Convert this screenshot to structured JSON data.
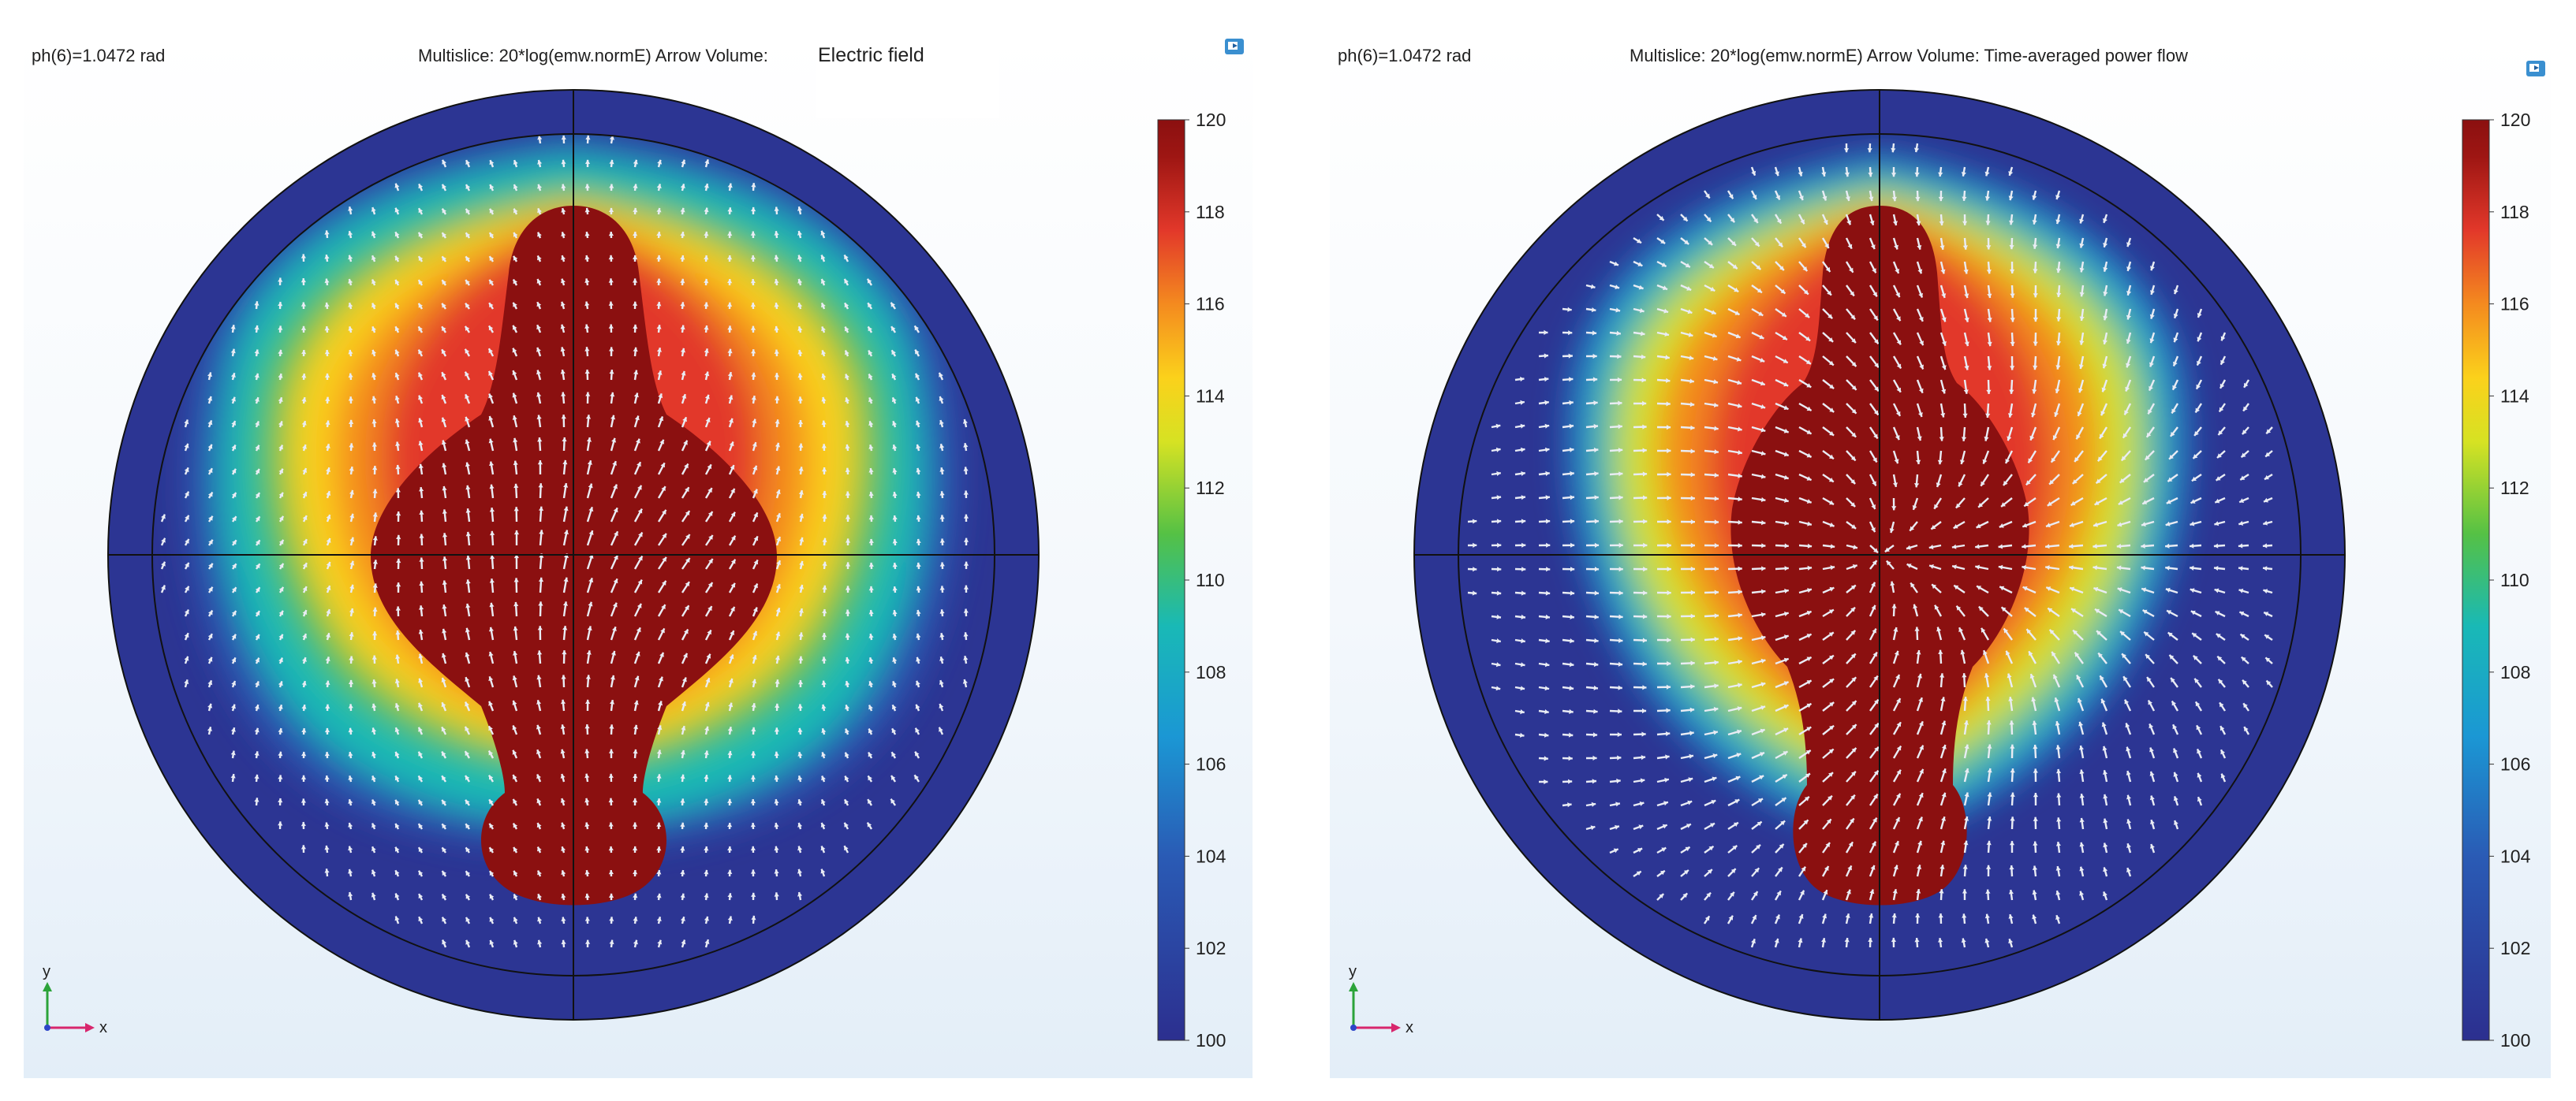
{
  "panels": [
    {
      "phase_label": "ph(6)=1.0472 rad",
      "title_prefix": "Multislice: 20*log(emw.normE)   Arrow Volume:",
      "arrow_label": "Electric field"
    },
    {
      "phase_label": "ph(6)=1.0472 rad",
      "title_prefix": "Multislice: 20*log(emw.normE)   Arrow Volume: Time-averaged power flow",
      "arrow_label": ""
    }
  ],
  "colorbar": {
    "ticks": [
      "100",
      "102",
      "104",
      "106",
      "108",
      "110",
      "112",
      "114",
      "116",
      "118",
      "120"
    ],
    "min": 100,
    "max": 120
  },
  "axis_triad": {
    "x": "x",
    "y": "y"
  },
  "colors": {
    "low": "#2c3593",
    "mid": "#1cb5c3",
    "high": "#8b1010",
    "arrow": "#e9ecf4",
    "x_axis": "#d8266d",
    "y_axis": "#2ba33a",
    "z_axis": "#2d45c8"
  },
  "icons": [
    "plot-options-icon"
  ]
}
